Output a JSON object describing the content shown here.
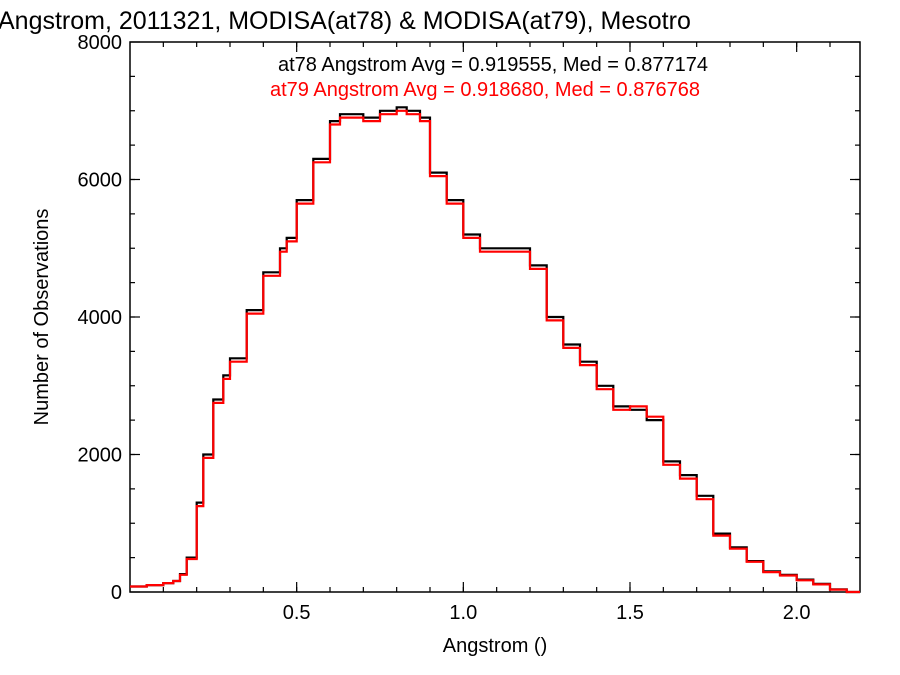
{
  "chart_data": {
    "type": "line",
    "title": "Angstrom, 2011321, MODISA(at78) & MODISA(at79), Mesotro",
    "xlabel": "Angstrom ()",
    "ylabel": "Number of Observations",
    "xlim": [
      0.0,
      2.19
    ],
    "ylim": [
      0,
      8000
    ],
    "x_ticks": [
      0.5,
      1.0,
      1.5,
      2.0
    ],
    "x_tick_labels": [
      "0.5",
      "1.0",
      "1.5",
      "2.0"
    ],
    "y_ticks": [
      0,
      2000,
      4000,
      6000,
      8000
    ],
    "y_tick_labels": [
      "0",
      "2000",
      "4000",
      "6000",
      "8000"
    ],
    "grid": false,
    "step": true,
    "legend_position": "top-right",
    "x": [
      0.0,
      0.05,
      0.1,
      0.13,
      0.15,
      0.17,
      0.2,
      0.22,
      0.25,
      0.28,
      0.3,
      0.35,
      0.4,
      0.45,
      0.47,
      0.5,
      0.55,
      0.6,
      0.63,
      0.65,
      0.7,
      0.75,
      0.8,
      0.83,
      0.85,
      0.87,
      0.9,
      0.95,
      1.0,
      1.05,
      1.1,
      1.15,
      1.2,
      1.25,
      1.3,
      1.35,
      1.4,
      1.45,
      1.5,
      1.55,
      1.6,
      1.65,
      1.7,
      1.75,
      1.8,
      1.85,
      1.9,
      1.95,
      2.0,
      2.05,
      2.1,
      2.15,
      2.19
    ],
    "series": [
      {
        "name": "at78",
        "color": "#000000",
        "values": [
          80,
          100,
          130,
          160,
          260,
          500,
          1300,
          2000,
          2800,
          3150,
          3400,
          4100,
          4650,
          5000,
          5150,
          5700,
          6300,
          6850,
          6950,
          6950,
          6900,
          7000,
          7050,
          7000,
          7000,
          6900,
          6100,
          5700,
          5200,
          5000,
          5000,
          5000,
          4750,
          4000,
          3600,
          3350,
          3000,
          2700,
          2650,
          2500,
          1900,
          1700,
          1400,
          850,
          650,
          450,
          300,
          250,
          180,
          120,
          40,
          0,
          0
        ]
      },
      {
        "name": "at79",
        "color": "#ff0000",
        "values": [
          80,
          100,
          130,
          160,
          250,
          480,
          1250,
          1950,
          2750,
          3100,
          3350,
          4050,
          4600,
          4950,
          5100,
          5650,
          6250,
          6800,
          6900,
          6900,
          6850,
          6950,
          7000,
          6950,
          6950,
          6850,
          6050,
          5650,
          5150,
          4950,
          4950,
          4950,
          4700,
          3950,
          3550,
          3300,
          2950,
          2650,
          2700,
          2550,
          1850,
          1650,
          1350,
          820,
          630,
          440,
          290,
          240,
          170,
          110,
          35,
          0,
          0
        ]
      }
    ],
    "annotations": [
      {
        "text": "at78 Angstrom Avg = 0.919555, Med = 0.877174",
        "color": "#000000"
      },
      {
        "text": "at79 Angstrom Avg = 0.918680, Med = 0.876768",
        "color": "#ff0000"
      }
    ]
  }
}
